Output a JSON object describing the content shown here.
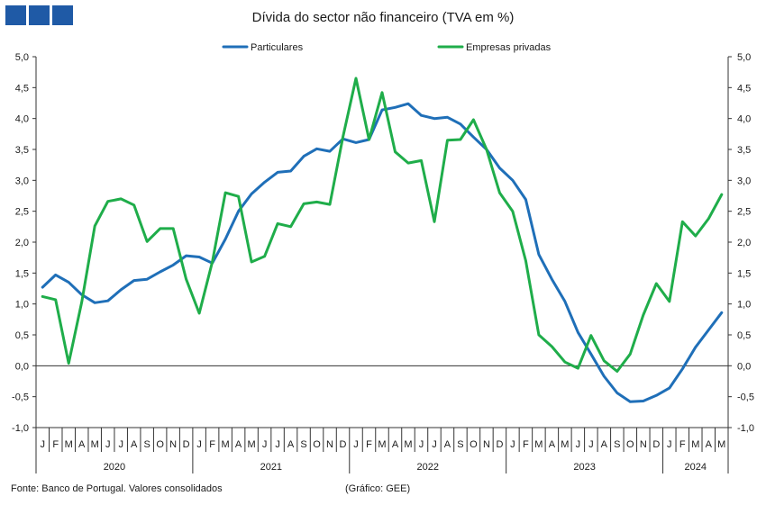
{
  "title": "Dívida do sector não financeiro (TVA em %)",
  "footer": {
    "source": "Fonte: Banco de Portugal. Valores consolidados",
    "credit": "(Gráfico: GEE)"
  },
  "colors": {
    "logo": "#1f5aa6",
    "particulares": "#1f6fb8",
    "empresas": "#1fad4a",
    "axis": "#333333"
  },
  "chart_data": {
    "type": "line",
    "title": "Dívida do sector não financeiro (TVA em %)",
    "legend_position": "top",
    "grid": false,
    "ylim": [
      -1.0,
      5.0
    ],
    "y_ticks": [
      "-1,0",
      "-0,5",
      "0,0",
      "0,5",
      "1,0",
      "1,5",
      "2,0",
      "2,5",
      "3,0",
      "3,5",
      "4,0",
      "4,5",
      "5,0"
    ],
    "y_axis_right": true,
    "month_labels": [
      "J",
      "F",
      "M",
      "A",
      "M",
      "J",
      "J",
      "A",
      "S",
      "O",
      "N",
      "D",
      "J",
      "F",
      "M",
      "A",
      "M",
      "J",
      "J",
      "A",
      "S",
      "O",
      "N",
      "D",
      "J",
      "F",
      "M",
      "A",
      "M",
      "J",
      "J",
      "A",
      "S",
      "O",
      "N",
      "D",
      "J",
      "F",
      "M",
      "A",
      "M",
      "J",
      "J",
      "A",
      "S",
      "O",
      "N",
      "D",
      "J",
      "F",
      "M",
      "A",
      "M"
    ],
    "years": [
      {
        "label": "2020",
        "start": 0,
        "months": 12
      },
      {
        "label": "2021",
        "start": 12,
        "months": 12
      },
      {
        "label": "2022",
        "start": 24,
        "months": 12
      },
      {
        "label": "2023",
        "start": 36,
        "months": 12
      },
      {
        "label": "2024",
        "start": 48,
        "months": 5
      }
    ],
    "series": [
      {
        "name": "Particulares",
        "color": "#1f6fb8",
        "values": [
          1.27,
          1.47,
          1.35,
          1.15,
          1.02,
          1.05,
          1.23,
          1.38,
          1.4,
          1.52,
          1.63,
          1.78,
          1.76,
          1.66,
          2.05,
          2.5,
          2.78,
          2.97,
          3.13,
          3.15,
          3.39,
          3.51,
          3.47,
          3.67,
          3.61,
          3.66,
          4.14,
          4.18,
          4.24,
          4.05,
          4.0,
          4.02,
          3.91,
          3.7,
          3.5,
          3.2,
          3.0,
          2.69,
          1.8,
          1.4,
          1.04,
          0.54,
          0.19,
          -0.17,
          -0.44,
          -0.58,
          -0.57,
          -0.48,
          -0.36,
          -0.05,
          0.3,
          0.58,
          0.86
        ]
      },
      {
        "name": "Empresas privadas",
        "color": "#1fad4a",
        "values": [
          1.12,
          1.07,
          0.04,
          1.03,
          2.26,
          2.66,
          2.7,
          2.6,
          2.01,
          2.22,
          2.22,
          1.4,
          0.85,
          1.68,
          2.8,
          2.74,
          1.68,
          1.77,
          2.3,
          2.25,
          2.62,
          2.65,
          2.61,
          3.7,
          4.65,
          3.66,
          4.42,
          3.46,
          3.28,
          3.32,
          2.33,
          3.65,
          3.66,
          3.98,
          3.5,
          2.8,
          2.5,
          1.7,
          0.5,
          0.31,
          0.06,
          -0.04,
          0.49,
          0.08,
          -0.09,
          0.19,
          0.82,
          1.33,
          1.04,
          2.33,
          2.1,
          2.38,
          2.77
        ]
      }
    ]
  }
}
